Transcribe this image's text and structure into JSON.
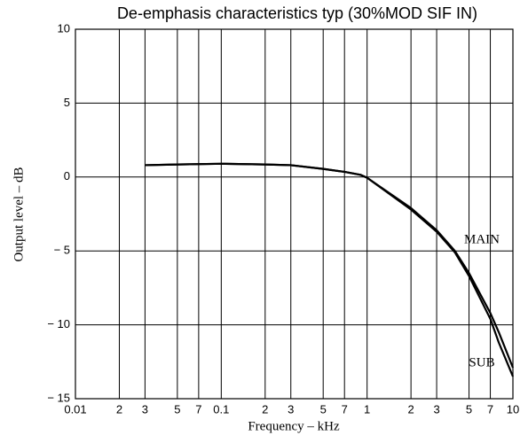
{
  "chart_data": {
    "type": "line",
    "title": "De-emphasis characteristics typ (30%MOD SIF IN)",
    "x_label": "Frequency – kHz",
    "y_label": "Output level – dB",
    "x_scale": "log",
    "grid": true,
    "x": [
      0.03,
      0.05,
      0.1,
      0.2,
      0.3,
      0.5,
      0.7,
      0.9,
      1,
      2,
      3,
      4,
      5,
      7,
      8,
      10
    ],
    "series": [
      {
        "name": "MAIN",
        "color": "#000000",
        "values": [
          0.8,
          0.85,
          0.9,
          0.85,
          0.8,
          0.55,
          0.35,
          0.15,
          -0.05,
          -2.1,
          -3.6,
          -5,
          -6.5,
          -9.2,
          -10.5,
          -12.9
        ]
      },
      {
        "name": "SUB",
        "color": "#000000",
        "values": [
          0.8,
          0.85,
          0.9,
          0.85,
          0.8,
          0.55,
          0.35,
          0.15,
          -0.05,
          -2.2,
          -3.7,
          -5.1,
          -6.7,
          -9.6,
          -11.2,
          -13.5
        ]
      }
    ],
    "xlim": [
      0.01,
      10
    ],
    "ylim": [
      -15,
      10
    ],
    "xticks": [
      0.01,
      {
        "value": 0.02,
        "label": "2"
      },
      {
        "value": 0.03,
        "label": "3"
      },
      {
        "value": 0.05,
        "label": "5"
      },
      {
        "value": 0.07,
        "label": "7"
      },
      0.1,
      {
        "value": 0.2,
        "label": "2"
      },
      {
        "value": 0.3,
        "label": "3"
      },
      {
        "value": 0.5,
        "label": "5"
      },
      {
        "value": 0.7,
        "label": "7"
      },
      1,
      {
        "value": 2,
        "label": "2"
      },
      {
        "value": 3,
        "label": "3"
      },
      {
        "value": 5,
        "label": "5"
      },
      {
        "value": 7,
        "label": "7"
      },
      10
    ],
    "yticks": [
      10,
      5,
      0,
      {
        "value": -5,
        "label": "− 5"
      },
      {
        "value": -10,
        "label": "− 10"
      },
      {
        "value": -15,
        "label": "− 15"
      }
    ]
  }
}
